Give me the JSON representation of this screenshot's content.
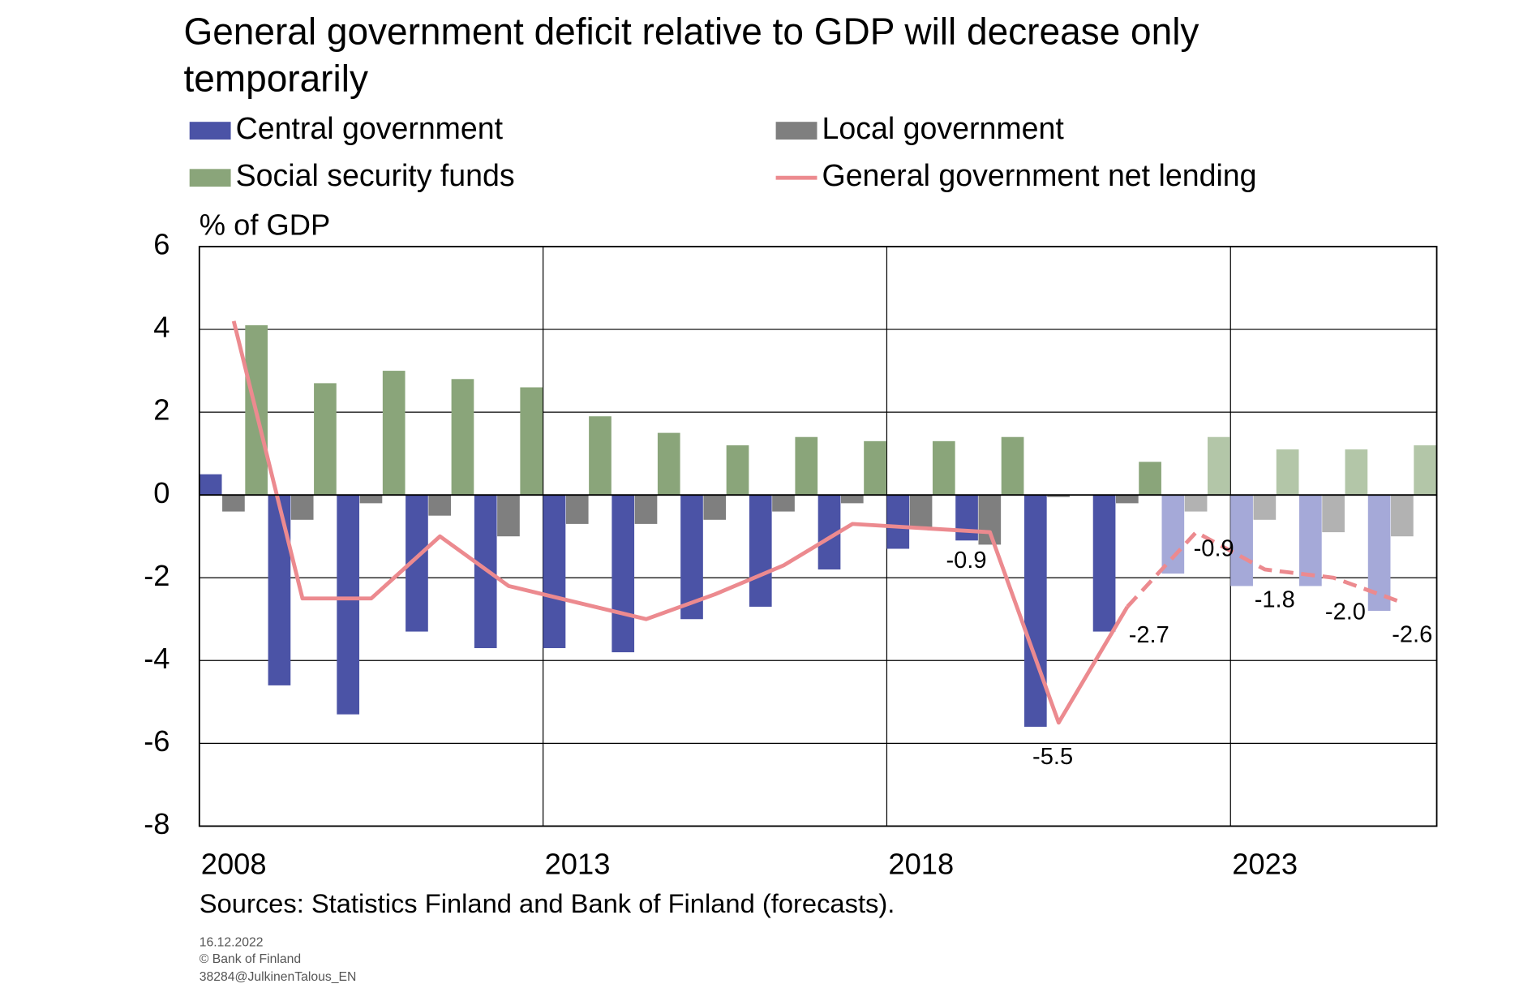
{
  "chart_data": {
    "type": "bar",
    "title": "General government deficit relative to GDP will decrease only temporarily",
    "y_label": "% of GDP",
    "source": "Sources: Statistics Finland and Bank of Finland (forecasts).",
    "footnotes": [
      "16.12.2022",
      "© Bank of Finland",
      "38284@JulkinenTalous_EN"
    ],
    "categories": [
      "2008",
      null,
      null,
      null,
      null,
      "2013",
      null,
      null,
      null,
      null,
      "2018",
      null,
      null,
      null,
      null,
      "2023",
      null,
      null
    ],
    "ylim": [
      -8,
      6
    ],
    "yticks": [
      -8,
      -6,
      -4,
      -2,
      0,
      2,
      4,
      6
    ],
    "grid": true,
    "series": [
      {
        "name": "Central government",
        "type": "bar",
        "color": "#4b53a6",
        "point_colors": [
          "#4b53a6",
          "#4b53a6",
          "#4b53a6",
          "#4b53a6",
          "#4b53a6",
          "#4b53a6",
          "#4b53a6",
          "#4b53a6",
          "#4b53a6",
          "#4b53a6",
          "#4b53a6",
          "#4b53a6",
          "#4b53a6",
          "#4b53a6",
          "#a5a9d8",
          "#a5a9d8",
          "#a5a9d8",
          "#a5a9d8"
        ],
        "values": [
          0.5,
          -4.6,
          -5.3,
          -3.3,
          -3.7,
          -3.7,
          -3.8,
          -3.0,
          -2.7,
          -1.8,
          -1.3,
          -1.1,
          -5.6,
          -3.3,
          -1.9,
          -2.2,
          -2.2,
          -2.8
        ]
      },
      {
        "name": "Local government",
        "type": "bar",
        "color": "#7f7f7f",
        "point_colors": [
          "#7f7f7f",
          "#7f7f7f",
          "#7f7f7f",
          "#7f7f7f",
          "#7f7f7f",
          "#7f7f7f",
          "#7f7f7f",
          "#7f7f7f",
          "#7f7f7f",
          "#7f7f7f",
          "#7f7f7f",
          "#7f7f7f",
          "#7f7f7f",
          "#7f7f7f",
          "#b2b2b2",
          "#b2b2b2",
          "#b2b2b2",
          "#b2b2b2"
        ],
        "values": [
          -0.4,
          -0.6,
          -0.2,
          -0.5,
          -1.0,
          -0.7,
          -0.7,
          -0.6,
          -0.4,
          -0.2,
          -0.8,
          -1.2,
          -0.05,
          -0.2,
          -0.4,
          -0.6,
          -0.9,
          -1.0
        ]
      },
      {
        "name": "Social security funds",
        "type": "bar",
        "color": "#8aa57a",
        "point_colors": [
          "#8aa57a",
          "#8aa57a",
          "#8aa57a",
          "#8aa57a",
          "#8aa57a",
          "#8aa57a",
          "#8aa57a",
          "#8aa57a",
          "#8aa57a",
          "#8aa57a",
          "#8aa57a",
          "#8aa57a",
          "#8aa57a",
          "#8aa57a",
          "#b3c6a8",
          "#b3c6a8",
          "#b3c6a8",
          "#b3c6a8"
        ],
        "values": [
          4.1,
          2.7,
          3.0,
          2.8,
          2.6,
          1.9,
          1.5,
          1.2,
          1.4,
          1.3,
          1.3,
          1.4,
          0.0,
          0.8,
          1.4,
          1.1,
          1.1,
          1.2
        ]
      },
      {
        "name": "General government net lending",
        "type": "line",
        "color": "#ec8a8f",
        "segment_styles": [
          "solid",
          "solid",
          "solid",
          "solid",
          "solid",
          "solid",
          "solid",
          "solid",
          "solid",
          "solid",
          "solid",
          "solid",
          "solid",
          "solid",
          "dashed",
          "dashed",
          "dashed",
          "dashed"
        ],
        "values": [
          4.2,
          -2.5,
          -2.5,
          -1.0,
          -2.2,
          -2.6,
          -3.0,
          -2.4,
          -1.7,
          -0.7,
          -0.8,
          -0.9,
          -5.5,
          -2.7,
          -0.9,
          -1.8,
          -2.0,
          -2.6
        ],
        "value_labels": [
          null,
          null,
          null,
          null,
          null,
          null,
          null,
          null,
          null,
          null,
          null,
          "-0.9",
          "-5.5",
          "-2.7",
          "-0.9",
          "-1.8",
          "-2.0",
          "-2.6"
        ]
      }
    ]
  }
}
